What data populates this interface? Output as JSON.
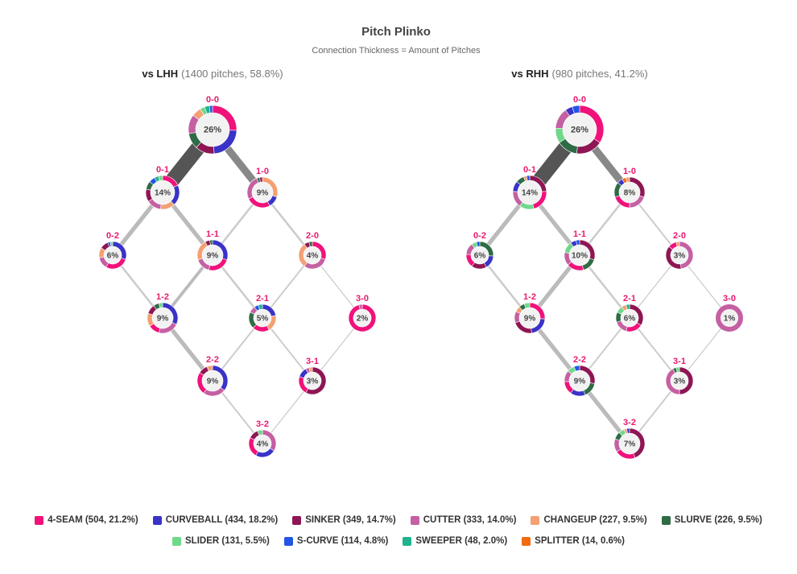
{
  "chart_data": {
    "type": "network-donut",
    "title": "Pitch Plinko",
    "subtitle": "Connection Thickness = Amount of Pitches",
    "pitch_types": [
      {
        "key": "4-SEAM",
        "label": "4-SEAM (504, 21.2%)",
        "color": "#f0127a"
      },
      {
        "key": "CURVEBALL",
        "label": "CURVEBALL (434, 18.2%)",
        "color": "#3a33c7"
      },
      {
        "key": "SINKER",
        "label": "SINKER (349, 14.7%)",
        "color": "#8e1654"
      },
      {
        "key": "CUTTER",
        "label": "CUTTER (333, 14.0%)",
        "color": "#c560a3"
      },
      {
        "key": "CHANGEUP",
        "label": "CHANGEUP (227, 9.5%)",
        "color": "#f4a073"
      },
      {
        "key": "SLURVE",
        "label": "SLURVE (226, 9.5%)",
        "color": "#2f6b45"
      },
      {
        "key": "SLIDER",
        "label": "SLIDER (131, 5.5%)",
        "color": "#6fd98a"
      },
      {
        "key": "S-CURVE",
        "label": "S-CURVE (114, 4.8%)",
        "color": "#2355e6"
      },
      {
        "key": "SWEEPER",
        "label": "SWEEPER (48, 2.0%)",
        "color": "#1fb28d"
      },
      {
        "key": "SPLITTER",
        "label": "SPLITTER (14, 0.6%)",
        "color": "#f26b10"
      }
    ],
    "panels": [
      {
        "title_bold": "vs LHH",
        "title_rest": "(1400 pitches, 58.8%)",
        "counts": [
          {
            "count": "0-0",
            "pct": "26%",
            "mix": {
              "4-SEAM": 24,
              "CURVEBALL": 22,
              "SINKER": 12,
              "SLURVE": 10,
              "CUTTER": 12,
              "CHANGEUP": 6,
              "SLIDER": 3,
              "SWEEPER": 3,
              "S-CURVE": 2
            }
          },
          {
            "count": "0-1",
            "pct": "14%",
            "mix": {
              "4-SEAM": 18,
              "CURVEBALL": 20,
              "CHANGEUP": 14,
              "CUTTER": 14,
              "SINKER": 12,
              "SLURVE": 8,
              "S-CURVE": 6,
              "SWEEPER": 4,
              "SLIDER": 4
            }
          },
          {
            "count": "1-0",
            "pct": "9%",
            "mix": {
              "CHANGEUP": 30,
              "CURVEBALL": 12,
              "4-SEAM": 26,
              "CUTTER": 26,
              "SLURVE": 3,
              "SINKER": 3
            }
          },
          {
            "count": "0-2",
            "pct": "6%",
            "mix": {
              "CURVEBALL": 30,
              "4-SEAM": 28,
              "CUTTER": 14,
              "CHANGEUP": 12,
              "SINKER": 10,
              "S-CURVE": 3,
              "SLIDER": 3
            }
          },
          {
            "count": "1-1",
            "pct": "9%",
            "mix": {
              "CURVEBALL": 30,
              "4-SEAM": 24,
              "CUTTER": 16,
              "CHANGEUP": 22,
              "SINKER": 5,
              "SLURVE": 3
            }
          },
          {
            "count": "2-0",
            "pct": "4%",
            "mix": {
              "4-SEAM": 30,
              "CUTTER": 30,
              "CHANGEUP": 30,
              "SINKER": 6,
              "SLURVE": 4
            }
          },
          {
            "count": "1-2",
            "pct": "9%",
            "mix": {
              "CURVEBALL": 32,
              "CUTTER": 22,
              "4-SEAM": 12,
              "CHANGEUP": 14,
              "SINKER": 10,
              "SLURVE": 6,
              "SLIDER": 4
            }
          },
          {
            "count": "2-1",
            "pct": "5%",
            "mix": {
              "CURVEBALL": 22,
              "CHANGEUP": 20,
              "4-SEAM": 20,
              "SLURVE": 20,
              "CUTTER": 8,
              "S-CURVE": 5,
              "SWEEPER": 5
            }
          },
          {
            "count": "3-0",
            "pct": "2%",
            "mix": {
              "4-SEAM": 96,
              "CUTTER": 4
            }
          },
          {
            "count": "2-2",
            "pct": "9%",
            "mix": {
              "CURVEBALL": 36,
              "CUTTER": 24,
              "4-SEAM": 24,
              "SINKER": 10,
              "CHANGEUP": 6
            }
          },
          {
            "count": "3-1",
            "pct": "3%",
            "mix": {
              "SINKER": 58,
              "4-SEAM": 22,
              "CURVEBALL": 12,
              "CUTTER": 4,
              "CHANGEUP": 4
            }
          },
          {
            "count": "3-2",
            "pct": "4%",
            "mix": {
              "CUTTER": 34,
              "CURVEBALL": 24,
              "4-SEAM": 24,
              "SINKER": 12,
              "SLIDER": 6
            }
          }
        ]
      },
      {
        "title_bold": "vs RHH",
        "title_rest": "(980 pitches, 41.2%)",
        "counts": [
          {
            "count": "0-0",
            "pct": "26%",
            "mix": {
              "4-SEAM": 34,
              "SINKER": 18,
              "SLURVE": 14,
              "SLIDER": 10,
              "CUTTER": 14,
              "CURVEBALL": 5,
              "S-CURVE": 5
            }
          },
          {
            "count": "0-1",
            "pct": "14%",
            "mix": {
              "SINKER": 24,
              "4-SEAM": 22,
              "SLIDER": 14,
              "CUTTER": 16,
              "CURVEBALL": 10,
              "SLURVE": 8,
              "CHANGEUP": 3,
              "S-CURVE": 3
            }
          },
          {
            "count": "1-0",
            "pct": "8%",
            "mix": {
              "SINKER": 30,
              "CUTTER": 20,
              "4-SEAM": 20,
              "SLURVE": 16,
              "CURVEBALL": 6,
              "SPLITTER": 4,
              "CHANGEUP": 4
            }
          },
          {
            "count": "0-2",
            "pct": "6%",
            "mix": {
              "SLURVE": 26,
              "CURVEBALL": 16,
              "SINKER": 18,
              "4-SEAM": 16,
              "CUTTER": 14,
              "SLIDER": 6,
              "S-CURVE": 4
            }
          },
          {
            "count": "1-1",
            "pct": "10%",
            "mix": {
              "SINKER": 30,
              "SLURVE": 16,
              "4-SEAM": 18,
              "CUTTER": 14,
              "SLIDER": 12,
              "CURVEBALL": 6,
              "S-CURVE": 4
            }
          },
          {
            "count": "2-0",
            "pct": "3%",
            "mix": {
              "CUTTER": 48,
              "SINKER": 38,
              "4-SEAM": 10,
              "CHANGEUP": 4
            }
          },
          {
            "count": "1-2",
            "pct": "9%",
            "mix": {
              "4-SEAM": 26,
              "CURVEBALL": 22,
              "SINKER": 22,
              "CUTTER": 12,
              "CHANGEUP": 6,
              "SLURVE": 6,
              "SLIDER": 6
            }
          },
          {
            "count": "2-1",
            "pct": "6%",
            "mix": {
              "SINKER": 34,
              "4-SEAM": 20,
              "CUTTER": 16,
              "SLURVE": 12,
              "SLIDER": 8,
              "CHANGEUP": 6,
              "SWEEPER": 4
            }
          },
          {
            "count": "3-0",
            "pct": "1%",
            "mix": {
              "CUTTER": 100
            }
          },
          {
            "count": "2-2",
            "pct": "9%",
            "mix": {
              "SINKER": 28,
              "SLURVE": 16,
              "CURVEBALL": 16,
              "4-SEAM": 14,
              "CUTTER": 12,
              "SLIDER": 8,
              "S-CURVE": 6
            }
          },
          {
            "count": "3-1",
            "pct": "3%",
            "mix": {
              "SINKER": 50,
              "CUTTER": 42,
              "SLURVE": 4,
              "SLIDER": 4
            }
          },
          {
            "count": "3-2",
            "pct": "7%",
            "mix": {
              "SINKER": 44,
              "4-SEAM": 22,
              "CUTTER": 14,
              "SLURVE": 8,
              "SLIDER": 6,
              "CHANGEUP": 3,
              "CURVEBALL": 3
            }
          }
        ],
        "_edges_note_removed": null
      }
    ],
    "edges": {
      "left": [
        {
          "from": "0-0",
          "to": "0-1",
          "weight": 14
        },
        {
          "from": "0-0",
          "to": "1-0",
          "weight": 7
        },
        {
          "from": "0-1",
          "to": "0-2",
          "weight": 4
        },
        {
          "from": "0-1",
          "to": "1-1",
          "weight": 4
        },
        {
          "from": "1-0",
          "to": "1-1",
          "weight": 2
        },
        {
          "from": "1-0",
          "to": "2-0",
          "weight": 2
        },
        {
          "from": "0-2",
          "to": "1-2",
          "weight": 2
        },
        {
          "from": "1-1",
          "to": "1-2",
          "weight": 3
        },
        {
          "from": "1-1",
          "to": "2-1",
          "weight": 2
        },
        {
          "from": "2-0",
          "to": "2-1",
          "weight": 1.5
        },
        {
          "from": "2-0",
          "to": "3-0",
          "weight": 1
        },
        {
          "from": "1-2",
          "to": "2-2",
          "weight": 4
        },
        {
          "from": "2-1",
          "to": "2-2",
          "weight": 1.5
        },
        {
          "from": "2-1",
          "to": "3-1",
          "weight": 1.5
        },
        {
          "from": "3-0",
          "to": "3-1",
          "weight": 1
        },
        {
          "from": "2-2",
          "to": "3-2",
          "weight": 1.5
        },
        {
          "from": "3-1",
          "to": "3-2",
          "weight": 1
        }
      ],
      "right": [
        {
          "from": "0-0",
          "to": "0-1",
          "weight": 14
        },
        {
          "from": "0-0",
          "to": "1-0",
          "weight": 7
        },
        {
          "from": "0-1",
          "to": "0-2",
          "weight": 4
        },
        {
          "from": "0-1",
          "to": "1-1",
          "weight": 4
        },
        {
          "from": "1-0",
          "to": "1-1",
          "weight": 2
        },
        {
          "from": "1-0",
          "to": "2-0",
          "weight": 1.5
        },
        {
          "from": "0-2",
          "to": "1-2",
          "weight": 2
        },
        {
          "from": "1-1",
          "to": "1-2",
          "weight": 4
        },
        {
          "from": "1-1",
          "to": "2-1",
          "weight": 2
        },
        {
          "from": "2-0",
          "to": "2-1",
          "weight": 1
        },
        {
          "from": "2-0",
          "to": "3-0",
          "weight": 1
        },
        {
          "from": "1-2",
          "to": "2-2",
          "weight": 4
        },
        {
          "from": "2-1",
          "to": "2-2",
          "weight": 1.5
        },
        {
          "from": "2-1",
          "to": "3-1",
          "weight": 1.5
        },
        {
          "from": "3-0",
          "to": "3-1",
          "weight": 1
        },
        {
          "from": "2-2",
          "to": "3-2",
          "weight": 4
        },
        {
          "from": "3-1",
          "to": "3-2",
          "weight": 1.5
        }
      ]
    },
    "colors": {
      "count_label": "#e8196f",
      "edge_dark": "#555555",
      "edge_light": "#cccccc",
      "title": "#444444",
      "subtitle": "#666666"
    }
  }
}
